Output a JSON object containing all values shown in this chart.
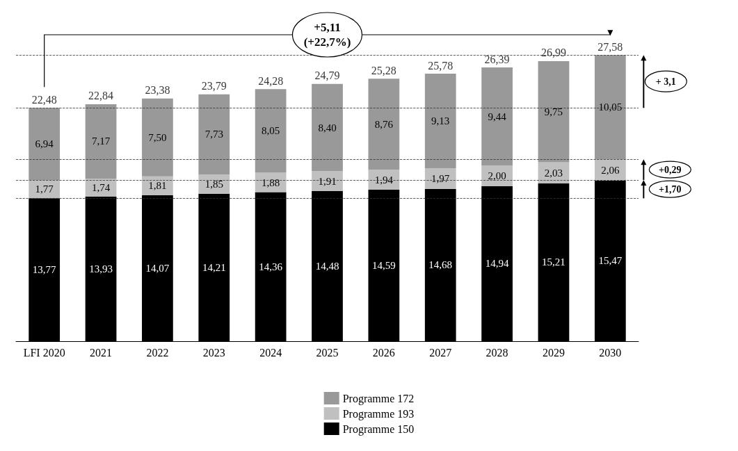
{
  "chart_data": {
    "type": "bar",
    "stacked": true,
    "categories": [
      "LFI 2020",
      "2021",
      "2022",
      "2023",
      "2024",
      "2025",
      "2026",
      "2027",
      "2028",
      "2029",
      "2030"
    ],
    "series": [
      {
        "name": "Programme 150",
        "color": "#000000",
        "values": [
          13.77,
          13.93,
          14.07,
          14.21,
          14.36,
          14.48,
          14.59,
          14.68,
          14.94,
          15.21,
          15.47
        ],
        "value_labels": [
          "13,77",
          "13,93",
          "14,07",
          "14,21",
          "14,36",
          "14,48",
          "14,59",
          "14,68",
          "14,94",
          "15,21",
          "15,47"
        ]
      },
      {
        "name": "Programme 193",
        "color": "#c0c0c0",
        "values": [
          1.77,
          1.74,
          1.81,
          1.85,
          1.88,
          1.91,
          1.94,
          1.97,
          2.0,
          2.03,
          2.06
        ],
        "value_labels": [
          "1,77",
          "1,74",
          "1,81",
          "1,85",
          "1,88",
          "1,91",
          "1,94",
          "1,97",
          "2,00",
          "2,03",
          "2,06"
        ]
      },
      {
        "name": "Programme 172",
        "color": "#999999",
        "values": [
          6.94,
          7.17,
          7.5,
          7.73,
          8.05,
          8.4,
          8.76,
          9.13,
          9.44,
          9.75,
          10.05
        ],
        "value_labels": [
          "6,94",
          "7,17",
          "7,50",
          "7,73",
          "8,05",
          "8,40",
          "8,76",
          "9,13",
          "9,44",
          "9,75",
          "10,05"
        ]
      }
    ],
    "totals": [
      "22,48",
      "22,84",
      "23,38",
      "23,79",
      "24,28",
      "24,79",
      "25,28",
      "25,78",
      "26,39",
      "26,99",
      "27,58"
    ],
    "ref_lines": [
      {
        "axis": "y",
        "value": 13.77,
        "line_style": "dashed"
      },
      {
        "axis": "y",
        "value": 15.54,
        "line_style": "dashed"
      },
      {
        "axis": "y",
        "value": 17.53,
        "line_style": "dashed"
      },
      {
        "axis": "y",
        "value": 22.48,
        "line_style": "dashed"
      },
      {
        "axis": "y",
        "value": 27.58,
        "line_style": "dashed"
      }
    ],
    "annotations": [
      "+5,11\n(+22,7%)",
      "+ 3,1",
      "+0,29",
      "+1,70"
    ],
    "legend": "bottom"
  }
}
